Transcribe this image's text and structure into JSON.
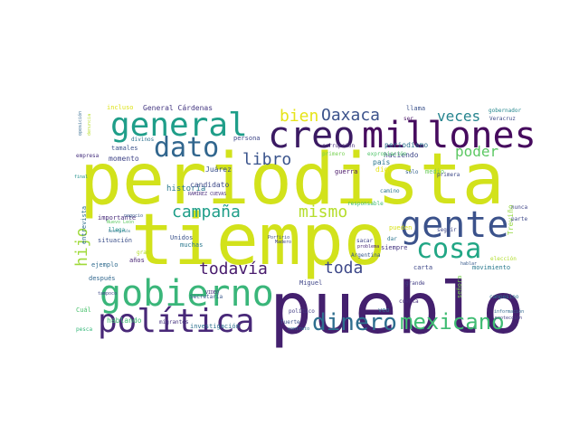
{
  "word_cloud": {
    "words": [
      {
        "text": "periodista",
        "color": "#d2e21b"
      },
      {
        "text": "tiempo",
        "color": "#d2e21b"
      },
      {
        "text": "pueblo",
        "color": "#44206e"
      },
      {
        "text": "creo",
        "color": "#3b1a63"
      },
      {
        "text": "millones",
        "color": "#460b5e"
      },
      {
        "text": "general",
        "color": "#1f9e89"
      },
      {
        "text": "gobierno",
        "color": "#3ab67a"
      },
      {
        "text": "gente",
        "color": "#3b528b"
      },
      {
        "text": "política",
        "color": "#482878"
      },
      {
        "text": "cosa",
        "color": "#21a685"
      },
      {
        "text": "dato",
        "color": "#31668e"
      },
      {
        "text": "dinero",
        "color": "#2e6e8e"
      },
      {
        "text": "mexicano",
        "color": "#3fbc73"
      },
      {
        "text": "Oaxaca",
        "color": "#3b528b"
      },
      {
        "text": "bien",
        "color": "#e6e419"
      },
      {
        "text": "veces",
        "color": "#25848e"
      },
      {
        "text": "libro",
        "color": "#3a548c"
      },
      {
        "text": "poder",
        "color": "#5cc863"
      },
      {
        "text": "campaña",
        "color": "#1f9e89"
      },
      {
        "text": "mismo",
        "color": "#b5de2b"
      },
      {
        "text": "todavía",
        "color": "#481b6d"
      },
      {
        "text": "toda",
        "color": "#3e4989"
      },
      {
        "text": "hijo",
        "color": "#9fda3a"
      },
      {
        "text": "Juárez",
        "color": "#3b528b"
      },
      {
        "text": "historia",
        "color": "#2a788e"
      },
      {
        "text": "candidato",
        "color": "#3e4a89"
      },
      {
        "text": "RAMÍREZ CUEVAS",
        "color": "#4b2f7e"
      },
      {
        "text": "periodismo",
        "color": "#2c728e"
      },
      {
        "text": "haciendo",
        "color": "#3f4788"
      },
      {
        "text": "primero",
        "color": "#77d153"
      },
      {
        "text": "corrupción",
        "color": "#472d7b"
      },
      {
        "text": "expropiación",
        "color": "#50c46a"
      },
      {
        "text": "país",
        "color": "#2a768e"
      },
      {
        "text": "digo",
        "color": "#e5e419"
      },
      {
        "text": "guerra",
        "color": "#481668"
      },
      {
        "text": "medio",
        "color": "#6ccd5a"
      },
      {
        "text": "sólo",
        "color": "#34608d"
      },
      {
        "text": "primera",
        "color": "#3e4a89"
      },
      {
        "text": "llama",
        "color": "#3b528b"
      },
      {
        "text": "ser",
        "color": "#471365"
      },
      {
        "text": "General Cárdenas",
        "color": "#453882"
      },
      {
        "text": "incluso",
        "color": "#dde318"
      },
      {
        "text": "tamales",
        "color": "#3b528b"
      },
      {
        "text": "divinos",
        "color": "#2d708e"
      },
      {
        "text": "persona",
        "color": "#3f4788"
      },
      {
        "text": "momento",
        "color": "#404588"
      },
      {
        "text": "empresa",
        "color": "#46307e"
      },
      {
        "text": "final",
        "color": "#21918c"
      },
      {
        "text": "denuncia",
        "color": "#b8de29"
      },
      {
        "text": "oposición",
        "color": "#31688e"
      },
      {
        "text": "entrevista",
        "color": "#2e6f8e"
      },
      {
        "text": "importante",
        "color": "#472c7a"
      },
      {
        "text": "Nuevo León",
        "color": "#5ec962"
      },
      {
        "text": "llega",
        "color": "#20928c"
      },
      {
        "text": "situación",
        "color": "#3c4f8a"
      },
      {
        "text": "Revolución",
        "color": "#2c738e"
      },
      {
        "text": "Unidos",
        "color": "#3b528b"
      },
      {
        "text": "muchas",
        "color": "#2a788e"
      },
      {
        "text": "años",
        "color": "#482374"
      },
      {
        "text": "gran",
        "color": "#b4de2c"
      },
      {
        "text": "ejemplo",
        "color": "#2f6b8e"
      },
      {
        "text": "después",
        "color": "#31678e"
      },
      {
        "text": "Cuál",
        "color": "#4ac16d"
      },
      {
        "text": "hablando",
        "color": "#3fbc73"
      },
      {
        "text": "pesca",
        "color": "#35b779"
      },
      {
        "text": "migrantes",
        "color": "#46337f"
      },
      {
        "text": "investigación",
        "color": "#2d718e"
      },
      {
        "text": "Secretaría",
        "color": "#38588c"
      },
      {
        "text": "VIDEO",
        "color": "#472f7d"
      },
      {
        "text": "tampoco",
        "color": "#3e4989"
      },
      {
        "text": "Miguel",
        "color": "#404688"
      },
      {
        "text": "Madero",
        "color": "#414487"
      },
      {
        "text": "Porfirio",
        "color": "#3d4e8a"
      },
      {
        "text": "político",
        "color": "#433d84"
      },
      {
        "text": "fuerte",
        "color": "#3a548c"
      },
      {
        "text": "contrato",
        "color": "#2d718e"
      },
      {
        "text": "sacar",
        "color": "#414487"
      },
      {
        "text": "problema",
        "color": "#482576"
      },
      {
        "text": "Argentina",
        "color": "#38588c"
      },
      {
        "text": "siempre",
        "color": "#453581"
      },
      {
        "text": "carta",
        "color": "#3f4889"
      },
      {
        "text": "veo",
        "color": "#2f6c8e"
      },
      {
        "text": "cuenta",
        "color": "#472e7c"
      },
      {
        "text": "grande",
        "color": "#433e85"
      },
      {
        "text": "movimiento",
        "color": "#29798e"
      },
      {
        "text": "elección",
        "color": "#b2dd2d"
      },
      {
        "text": "señora",
        "color": "#7ad151"
      },
      {
        "text": "Treviño",
        "color": "#95d840"
      },
      {
        "text": "campesino",
        "color": "#2c728e"
      },
      {
        "text": "información",
        "color": "#31688e"
      },
      {
        "text": "protección",
        "color": "#433e85"
      },
      {
        "text": "hablar",
        "color": "#37598c"
      },
      {
        "text": "pueden",
        "color": "#d8e219"
      },
      {
        "text": "responsable",
        "color": "#3fbc73"
      },
      {
        "text": "dar",
        "color": "#2b748e"
      },
      {
        "text": "seguir",
        "color": "#3f4788"
      },
      {
        "text": "parte",
        "color": "#3e4989"
      },
      {
        "text": "nunca",
        "color": "#404688"
      },
      {
        "text": "Veracruz",
        "color": "#3e4a89"
      },
      {
        "text": "gobernador",
        "color": "#24878e"
      },
      {
        "text": "camino",
        "color": "#2a778e"
      },
      {
        "text": "negocio",
        "color": "#38598c"
      }
    ]
  }
}
